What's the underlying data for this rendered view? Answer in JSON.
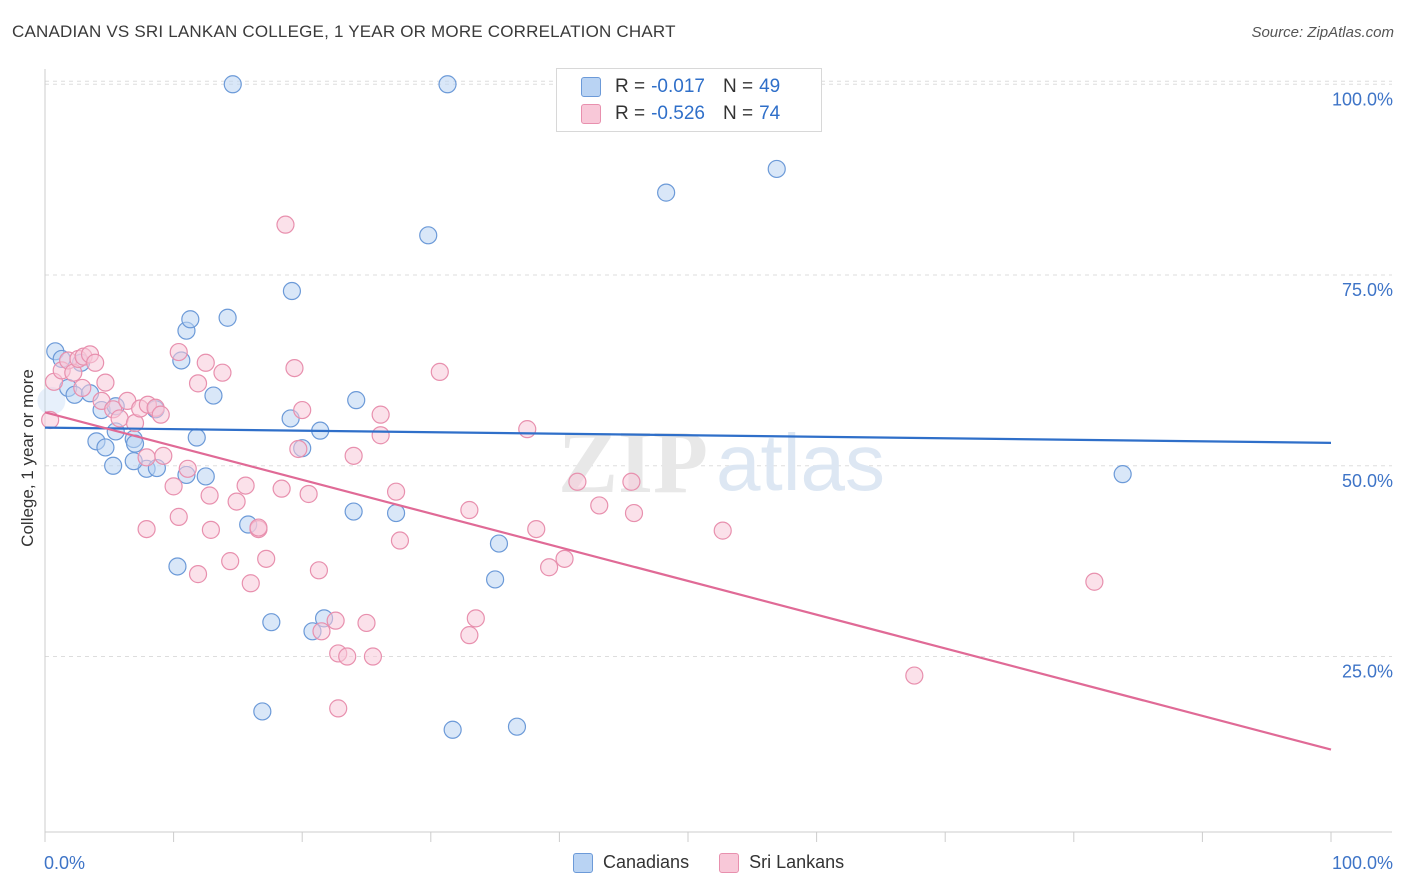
{
  "title": "CANADIAN VS SRI LANKAN COLLEGE, 1 YEAR OR MORE CORRELATION CHART",
  "source": "Source: ZipAtlas.com",
  "watermark": {
    "zip": "ZIP",
    "atlas": "atlas"
  },
  "colors": {
    "blue_fill": "#b9d3f3",
    "blue_stroke": "#6c9ad8",
    "blue_line": "#2f6fc9",
    "pink_fill": "#f8c8d8",
    "pink_stroke": "#e890ae",
    "pink_line": "#e06a96",
    "tick_text": "#3e74c7",
    "grid": "#dddddd"
  },
  "legend_top": [
    {
      "r_label": "R =",
      "r_value": "-0.017",
      "n_label": "N =",
      "n_value": "49"
    },
    {
      "r_label": "R =",
      "r_value": "-0.526",
      "n_label": "N =",
      "n_value": "74"
    }
  ],
  "legend_bottom": [
    "Canadians",
    "Sri Lankans"
  ],
  "chart_data": {
    "type": "scatter",
    "title": "CANADIAN VS SRI LANKAN COLLEGE, 1 YEAR OR MORE CORRELATION CHART",
    "xlabel": "",
    "ylabel": "College, 1 year or more",
    "xlim": [
      0,
      100
    ],
    "ylim": [
      2,
      102
    ],
    "x_tick_labels": [
      "0.0%",
      "100.0%"
    ],
    "y_ticks": [
      25,
      50,
      75,
      100
    ],
    "y_tick_labels": [
      "25.0%",
      "50.0%",
      "75.0%",
      "100.0%"
    ],
    "series": [
      {
        "name": "Canadians",
        "R": -0.017,
        "N": 49,
        "trend": {
          "x": [
            0,
            100
          ],
          "y": [
            55.0,
            53.0
          ]
        },
        "points": [
          [
            0.8,
            65.0
          ],
          [
            1.3,
            64.0
          ],
          [
            1.8,
            60.2
          ],
          [
            2.3,
            59.3
          ],
          [
            2.8,
            63.5
          ],
          [
            3.5,
            59.5
          ],
          [
            4.4,
            57.3
          ],
          [
            5.5,
            57.8
          ],
          [
            4.0,
            53.2
          ],
          [
            4.7,
            52.4
          ],
          [
            5.5,
            54.5
          ],
          [
            6.9,
            53.5
          ],
          [
            7.0,
            52.9
          ],
          [
            8.6,
            57.4
          ],
          [
            5.3,
            50.0
          ],
          [
            7.9,
            49.6
          ],
          [
            8.7,
            49.7
          ],
          [
            6.9,
            50.6
          ],
          [
            11.0,
            48.8
          ],
          [
            12.5,
            48.6
          ],
          [
            11.8,
            53.7
          ],
          [
            13.1,
            59.2
          ],
          [
            10.6,
            63.8
          ],
          [
            11.0,
            67.7
          ],
          [
            11.3,
            69.2
          ],
          [
            14.2,
            69.4
          ],
          [
            19.2,
            72.9
          ],
          [
            19.1,
            56.2
          ],
          [
            20.0,
            52.3
          ],
          [
            21.4,
            54.6
          ],
          [
            24.2,
            58.6
          ],
          [
            15.8,
            42.3
          ],
          [
            24.0,
            44.0
          ],
          [
            27.3,
            43.8
          ],
          [
            10.3,
            36.8
          ],
          [
            17.6,
            29.5
          ],
          [
            20.8,
            28.3
          ],
          [
            21.7,
            30.0
          ],
          [
            29.8,
            80.2
          ],
          [
            14.6,
            100.0
          ],
          [
            31.3,
            100.0
          ],
          [
            48.3,
            85.8
          ],
          [
            56.9,
            88.9
          ],
          [
            35.3,
            39.8
          ],
          [
            35.0,
            35.1
          ],
          [
            16.9,
            17.8
          ],
          [
            31.7,
            15.4
          ],
          [
            36.7,
            15.8
          ],
          [
            83.8,
            48.9
          ]
        ]
      },
      {
        "name": "Sri Lankans",
        "R": -0.526,
        "N": 74,
        "trend": {
          "x": [
            0,
            100
          ],
          "y": [
            57.0,
            12.8
          ]
        },
        "points": [
          [
            0.4,
            56.0
          ],
          [
            0.7,
            61.0
          ],
          [
            1.3,
            62.5
          ],
          [
            1.8,
            63.8
          ],
          [
            2.2,
            62.2
          ],
          [
            2.6,
            64.0
          ],
          [
            3.0,
            64.3
          ],
          [
            3.5,
            64.6
          ],
          [
            2.9,
            60.2
          ],
          [
            3.9,
            63.5
          ],
          [
            4.4,
            58.5
          ],
          [
            4.7,
            60.9
          ],
          [
            5.3,
            57.4
          ],
          [
            5.8,
            56.2
          ],
          [
            6.4,
            58.5
          ],
          [
            7.0,
            55.6
          ],
          [
            7.4,
            57.5
          ],
          [
            8.0,
            58.0
          ],
          [
            8.6,
            57.6
          ],
          [
            9.0,
            56.7
          ],
          [
            10.4,
            64.9
          ],
          [
            12.5,
            63.5
          ],
          [
            13.8,
            62.2
          ],
          [
            11.9,
            60.8
          ],
          [
            7.9,
            51.1
          ],
          [
            9.2,
            51.3
          ],
          [
            11.1,
            49.6
          ],
          [
            10.0,
            47.3
          ],
          [
            12.8,
            46.1
          ],
          [
            14.9,
            45.3
          ],
          [
            15.6,
            47.4
          ],
          [
            18.4,
            47.0
          ],
          [
            20.5,
            46.3
          ],
          [
            7.9,
            41.7
          ],
          [
            10.4,
            43.3
          ],
          [
            12.9,
            41.6
          ],
          [
            16.6,
            41.7
          ],
          [
            16.6,
            41.9
          ],
          [
            19.4,
            62.8
          ],
          [
            19.7,
            52.2
          ],
          [
            20.0,
            57.3
          ],
          [
            24.0,
            51.3
          ],
          [
            26.1,
            56.7
          ],
          [
            26.1,
            54.0
          ],
          [
            27.3,
            46.6
          ],
          [
            11.9,
            35.8
          ],
          [
            14.4,
            37.5
          ],
          [
            16.0,
            34.6
          ],
          [
            17.2,
            37.8
          ],
          [
            21.3,
            36.3
          ],
          [
            27.6,
            40.2
          ],
          [
            18.7,
            81.6
          ],
          [
            30.7,
            62.3
          ],
          [
            33.0,
            44.2
          ],
          [
            37.5,
            54.8
          ],
          [
            41.4,
            47.9
          ],
          [
            43.1,
            44.8
          ],
          [
            45.6,
            47.9
          ],
          [
            38.2,
            41.7
          ],
          [
            45.8,
            43.8
          ],
          [
            52.7,
            41.5
          ],
          [
            39.2,
            36.7
          ],
          [
            40.4,
            37.8
          ],
          [
            21.5,
            28.3
          ],
          [
            22.6,
            29.7
          ],
          [
            22.8,
            25.4
          ],
          [
            23.5,
            25.0
          ],
          [
            25.0,
            29.4
          ],
          [
            25.5,
            25.0
          ],
          [
            33.0,
            27.8
          ],
          [
            33.5,
            30.0
          ],
          [
            22.8,
            18.2
          ],
          [
            81.6,
            34.8
          ],
          [
            67.6,
            22.5
          ]
        ]
      }
    ]
  }
}
